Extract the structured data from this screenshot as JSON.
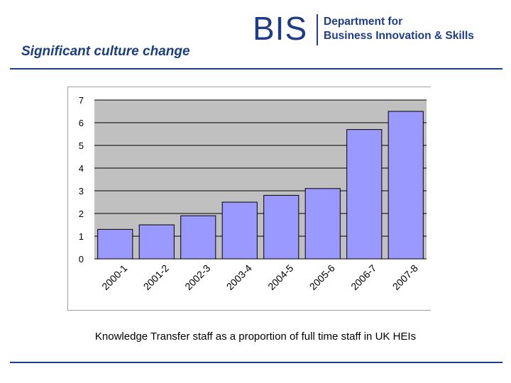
{
  "slide": {
    "title": "Significant culture change",
    "caption": "Knowledge Transfer staff as a proportion of full time staff in UK HEIs"
  },
  "logo": {
    "acronym": "BIS",
    "line1": "Department for",
    "line2": "Business Innovation & Skills"
  },
  "colors": {
    "title": "#1a3f7a",
    "brand": "#1f3c88",
    "bar": "#9999ff",
    "plot_background": "#c0c0c0"
  },
  "chart_data": {
    "type": "bar",
    "categories": [
      "2000-1",
      "2001-2",
      "2002-3",
      "2003-4",
      "2004-5",
      "2005-6",
      "2006-7",
      "2007-8"
    ],
    "values": [
      1.3,
      1.5,
      1.9,
      2.5,
      2.8,
      3.1,
      5.7,
      6.5
    ],
    "title": "",
    "xlabel": "",
    "ylabel": "",
    "ylim": [
      0,
      7
    ],
    "yticks": [
      0,
      1,
      2,
      3,
      4,
      5,
      6,
      7
    ],
    "grid": true,
    "legend": "none"
  }
}
